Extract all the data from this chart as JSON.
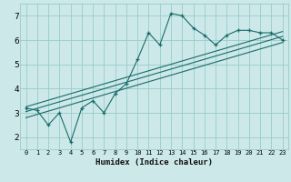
{
  "title": "",
  "xlabel": "Humidex (Indice chaleur)",
  "ylabel": "",
  "bg_color": "#cce8e8",
  "line_color": "#1a6b6b",
  "grid_color": "#99cccc",
  "xlim": [
    -0.5,
    23.5
  ],
  "ylim": [
    1.5,
    7.5
  ],
  "xticks": [
    0,
    1,
    2,
    3,
    4,
    5,
    6,
    7,
    8,
    9,
    10,
    11,
    12,
    13,
    14,
    15,
    16,
    17,
    18,
    19,
    20,
    21,
    22,
    23
  ],
  "yticks": [
    2,
    3,
    4,
    5,
    6,
    7
  ],
  "data_x": [
    0,
    1,
    2,
    3,
    4,
    5,
    6,
    7,
    8,
    9,
    10,
    11,
    12,
    13,
    14,
    15,
    16,
    17,
    18,
    19,
    20,
    21,
    22,
    23
  ],
  "data_y": [
    3.2,
    3.1,
    2.5,
    3.0,
    1.8,
    3.2,
    3.5,
    3.0,
    3.8,
    4.2,
    5.2,
    6.3,
    5.8,
    7.1,
    7.0,
    6.5,
    6.2,
    5.8,
    6.2,
    6.4,
    6.4,
    6.3,
    6.3,
    6.0
  ],
  "trend1_x": [
    0,
    23
  ],
  "trend1_y": [
    3.05,
    6.15
  ],
  "trend2_x": [
    0,
    23
  ],
  "trend2_y": [
    2.8,
    5.9
  ],
  "trend3_x": [
    0,
    23
  ],
  "trend3_y": [
    3.25,
    6.35
  ]
}
